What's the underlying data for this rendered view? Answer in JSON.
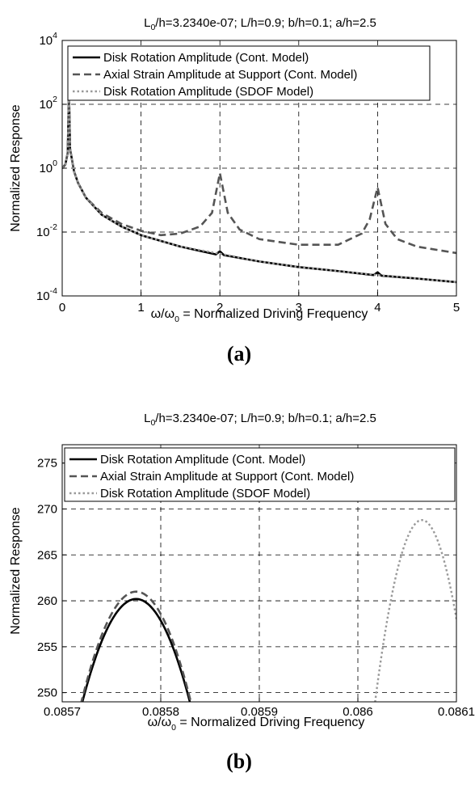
{
  "chart_data": [
    {
      "type": "line",
      "title_parts": [
        "L",
        "0",
        "/h=3.2340e-07; L/h=0.9; b/h=0.1; a/h=2.5"
      ],
      "xlabel_parts": [
        "ω/ω",
        "0",
        " = Normalized Driving Frequency"
      ],
      "ylabel": "Normalized Response",
      "caption": "(a)",
      "yscale": "log",
      "xlim": [
        0,
        5
      ],
      "ylim_exp": [
        -4,
        4
      ],
      "xticks": [
        "0",
        "1",
        "2",
        "3",
        "4",
        "5"
      ],
      "yticks": [
        {
          "base": "10",
          "exp": "-4"
        },
        {
          "base": "10",
          "exp": "-2"
        },
        {
          "base": "10",
          "exp": "0"
        },
        {
          "base": "10",
          "exp": "2"
        },
        {
          "base": "10",
          "exp": "4"
        }
      ],
      "grid": true,
      "legend_position": "top",
      "series": [
        {
          "name": "Disk Rotation Amplitude (Cont. Model)",
          "style": "solid",
          "color": "#000000",
          "x": [
            0,
            0.04,
            0.07,
            0.0858,
            0.1,
            0.15,
            0.2,
            0.3,
            0.5,
            0.75,
            1.0,
            1.5,
            1.95,
            2.0,
            2.05,
            2.5,
            3.0,
            3.5,
            3.95,
            4.0,
            4.05,
            4.5,
            5.0
          ],
          "y": [
            1.0,
            1.3,
            3.0,
            260,
            4.0,
            0.8,
            0.35,
            0.12,
            0.035,
            0.015,
            0.008,
            0.0035,
            0.002,
            0.0025,
            0.0019,
            0.0012,
            0.0008,
            0.0006,
            0.00045,
            0.00055,
            0.00043,
            0.00035,
            0.00027
          ]
        },
        {
          "name": "Axial Strain Amplitude at Support (Cont. Model)",
          "style": "dashed",
          "color": "#555555",
          "x": [
            0,
            0.04,
            0.07,
            0.0858,
            0.1,
            0.15,
            0.2,
            0.3,
            0.5,
            0.75,
            1.0,
            1.25,
            1.5,
            1.75,
            1.9,
            2.0,
            2.1,
            2.25,
            2.5,
            3.0,
            3.5,
            3.8,
            3.9,
            4.0,
            4.1,
            4.25,
            4.5,
            5.0
          ],
          "y": [
            1.0,
            1.3,
            3.0,
            261,
            4.0,
            0.8,
            0.35,
            0.12,
            0.04,
            0.018,
            0.011,
            0.008,
            0.009,
            0.015,
            0.04,
            0.7,
            0.04,
            0.012,
            0.006,
            0.004,
            0.004,
            0.009,
            0.025,
            0.25,
            0.018,
            0.006,
            0.0035,
            0.0022
          ]
        },
        {
          "name": "Disk Rotation Amplitude (SDOF Model)",
          "style": "dotted",
          "color": "#999999",
          "x": [
            0,
            0.04,
            0.07,
            0.0864,
            0.1,
            0.15,
            0.2,
            0.3,
            0.5,
            0.75,
            1.0,
            1.5,
            2.0,
            2.5,
            3.0,
            3.5,
            4.0,
            4.5,
            5.0
          ],
          "y": [
            1.0,
            1.3,
            3.0,
            268,
            4.0,
            0.8,
            0.35,
            0.12,
            0.035,
            0.015,
            0.008,
            0.0035,
            0.0021,
            0.0012,
            0.0008,
            0.0006,
            0.00045,
            0.00035,
            0.00027
          ]
        }
      ]
    },
    {
      "type": "line",
      "title_parts": [
        "L",
        "0",
        "/h=3.2340e-07; L/h=0.9; b/h=0.1; a/h=2.5"
      ],
      "xlabel_parts": [
        "ω/ω",
        "0",
        " = Normalized Driving Frequency"
      ],
      "ylabel": "Normalized Response",
      "caption": "(b)",
      "yscale": "linear",
      "xlim": [
        0.0857,
        0.0861
      ],
      "ylim": [
        249,
        277
      ],
      "xticks": [
        "0.0857",
        "0.0858",
        "0.0859",
        "0.086",
        "0.0861"
      ],
      "yticks": [
        "250",
        "255",
        "260",
        "265",
        "270",
        "275"
      ],
      "grid": true,
      "legend_position": "top",
      "series": [
        {
          "name": "Disk Rotation Amplitude (Cont. Model)",
          "style": "solid",
          "color": "#000000",
          "peak_x": 0.085775,
          "peak_y": 260.2,
          "half_width_at_249": 5.45e-05
        },
        {
          "name": "Axial Strain Amplitude at Support (Cont. Model)",
          "style": "dashed",
          "color": "#555555",
          "peak_x": 0.085775,
          "peak_y": 261.0,
          "half_width_at_249": 5.55e-05
        },
        {
          "name": "Disk Rotation Amplitude (SDOF Model)",
          "style": "dotted",
          "color": "#999999",
          "peak_x": 0.086065,
          "peak_y": 268.8,
          "half_width_at_249": 4.75e-05
        }
      ]
    }
  ]
}
